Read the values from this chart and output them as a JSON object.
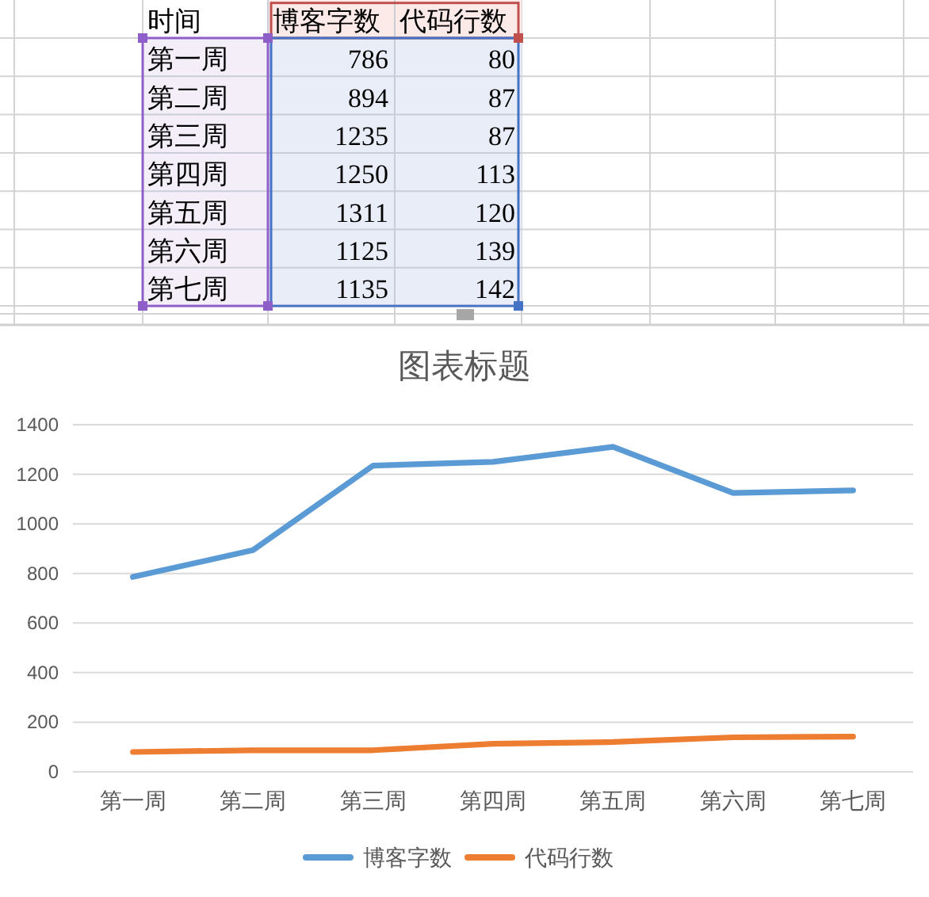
{
  "chart_data": [
    {
      "type": "other",
      "annotations": [
        "时间"
      ],
      "categories": [
        "第一周",
        "第二周",
        "第三周",
        "第四周",
        "第五周",
        "第六周",
        "第七周"
      ],
      "series": [
        {
          "name": "博客字数",
          "values": [
            786,
            894,
            1235,
            1250,
            1311,
            1125,
            1135
          ]
        },
        {
          "name": "代码行数",
          "values": [
            80,
            87,
            87,
            113,
            120,
            139,
            142
          ]
        }
      ],
      "data_labels": true
    },
    {
      "type": "line",
      "title": "图表标题",
      "categories": [
        "第一周",
        "第二周",
        "第三周",
        "第四周",
        "第五周",
        "第六周",
        "第七周"
      ],
      "series": [
        {
          "name": "博客字数",
          "color": "#5b9bd5",
          "values": [
            786,
            894,
            1235,
            1250,
            1311,
            1125,
            1135
          ]
        },
        {
          "name": "代码行数",
          "color": "#ed7d31",
          "values": [
            80,
            87,
            87,
            113,
            120,
            139,
            142
          ]
        }
      ],
      "ylim": [
        0,
        1400
      ],
      "yticks": [
        0,
        200,
        400,
        600,
        800,
        1000,
        1200,
        1400
      ],
      "grid": "y",
      "legend": "bottom",
      "line_style": "solid"
    }
  ]
}
